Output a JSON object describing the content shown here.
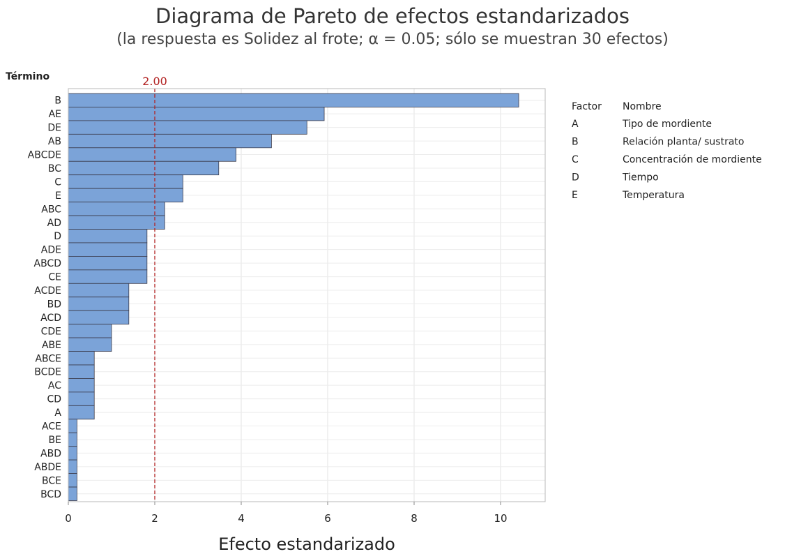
{
  "chart_data": {
    "type": "bar",
    "orientation": "horizontal",
    "title": "Diagrama de Pareto de efectos estandarizados",
    "subtitle": "(la respuesta es Solidez al frote; α = 0.05; sólo se muestran 30 efectos)",
    "ylabel": "Término",
    "xlabel": "Efecto estandarizado",
    "categories": [
      "B",
      "AE",
      "DE",
      "AB",
      "ABCDE",
      "BC",
      "C",
      "E",
      "ABC",
      "AD",
      "D",
      "ADE",
      "ABCD",
      "CE",
      "ACDE",
      "BD",
      "ACD",
      "CDE",
      "ABE",
      "ABCE",
      "BCDE",
      "AC",
      "CD",
      "A",
      "ACE",
      "BE",
      "ABD",
      "ABDE",
      "BCE",
      "BCD"
    ],
    "values": [
      10.42,
      5.92,
      5.52,
      4.7,
      3.88,
      3.48,
      2.65,
      2.65,
      2.23,
      2.23,
      1.82,
      1.82,
      1.82,
      1.82,
      1.4,
      1.4,
      1.4,
      1.0,
      1.0,
      0.6,
      0.6,
      0.6,
      0.6,
      0.6,
      0.2,
      0.2,
      0.2,
      0.2,
      0.2,
      0.2
    ],
    "xlim": [
      0,
      11
    ],
    "xticks": [
      0,
      2,
      4,
      6,
      8,
      10
    ],
    "reference_line": {
      "value": 2.0,
      "label": "2.00",
      "color": "#b22222"
    },
    "bar_color": "#7ba3d8",
    "grid": true,
    "legend": {
      "placement": "right",
      "header_factor": "Factor",
      "header_name": "Nombre",
      "items": [
        {
          "factor": "A",
          "name": "Tipo de mordiente"
        },
        {
          "factor": "B",
          "name": "Relación planta/ sustrato"
        },
        {
          "factor": "C",
          "name": "Concentración de mordiente"
        },
        {
          "factor": "D",
          "name": "Tiempo"
        },
        {
          "factor": "E",
          "name": "Temperatura"
        }
      ]
    }
  }
}
